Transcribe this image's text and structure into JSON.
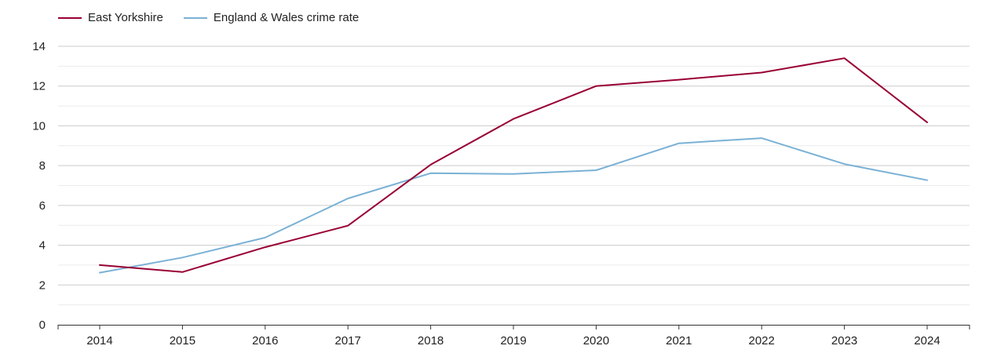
{
  "chart_data": {
    "type": "line",
    "x": [
      "2014",
      "2015",
      "2016",
      "2017",
      "2018",
      "2019",
      "2020",
      "2021",
      "2022",
      "2023",
      "2024"
    ],
    "series": [
      {
        "name": "East Yorkshire",
        "color": "#990033",
        "values": [
          3.0,
          2.65,
          3.9,
          4.98,
          8.05,
          10.35,
          12.0,
          12.32,
          12.68,
          13.4,
          10.18
        ]
      },
      {
        "name": "England & Wales crime rate",
        "color": "#7ab1d5",
        "values": [
          2.62,
          3.38,
          4.38,
          6.35,
          7.62,
          7.58,
          7.77,
          9.12,
          9.38,
          8.08,
          7.27
        ]
      }
    ],
    "ylim": [
      0,
      14
    ],
    "yticks": [
      "0",
      "2",
      "4",
      "6",
      "8",
      "10",
      "12",
      "14"
    ],
    "ytick_values": [
      0,
      2,
      4,
      6,
      8,
      10,
      12,
      14
    ],
    "grid": true,
    "legend_position": "top-left",
    "title": "",
    "xlabel": "",
    "ylabel": ""
  }
}
